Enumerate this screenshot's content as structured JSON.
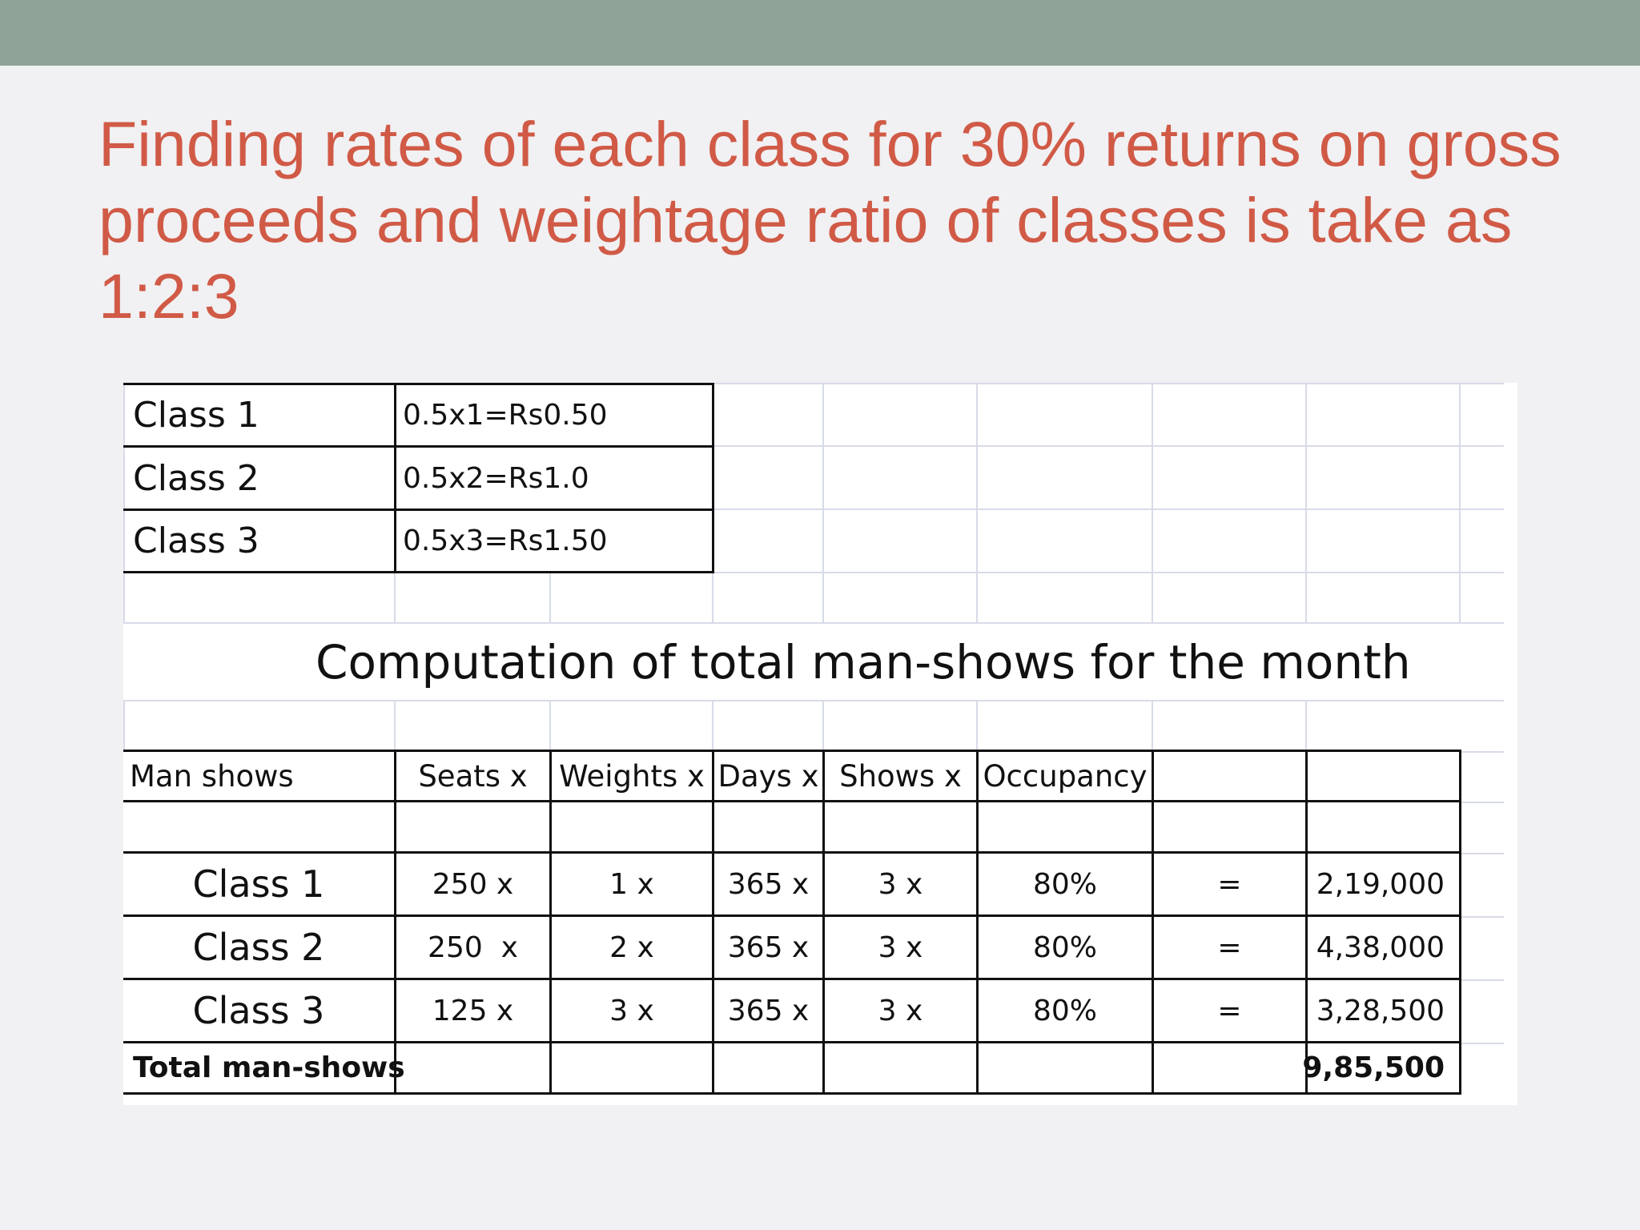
{
  "slide": {
    "title": "Finding rates of each class for 30% returns on gross proceeds and weightage ratio of classes is take as 1:2:3"
  },
  "rates": [
    {
      "label": "Class 1",
      "value": "0.5x1=Rs0.50"
    },
    {
      "label": "Class 2",
      "value": "0.5x2=Rs1.0"
    },
    {
      "label": "Class 3",
      "value": "0.5x3=Rs1.50"
    }
  ],
  "computation": {
    "heading": "Computation of total man-shows for the month",
    "headers": [
      "Man shows",
      "Seats x",
      "Weights x",
      "Days x",
      "Shows x",
      "Occupancy",
      "",
      ""
    ],
    "rows": [
      {
        "label": "Class 1",
        "seats": "250 x",
        "weights": "1 x",
        "days": "365 x",
        "shows": "3 x",
        "occupancy": "80%",
        "eq": "=",
        "total": "2,19,000"
      },
      {
        "label": "Class 2",
        "seats": "250  x",
        "weights": "2 x",
        "days": "365 x",
        "shows": "3 x",
        "occupancy": "80%",
        "eq": "=",
        "total": "4,38,000"
      },
      {
        "label": "Class 3",
        "seats": "125 x",
        "weights": "3 x",
        "days": "365 x",
        "shows": "3 x",
        "occupancy": "80%",
        "eq": "=",
        "total": "3,28,500"
      }
    ],
    "total_label": "Total man-shows",
    "total_value": "9,85,500"
  }
}
